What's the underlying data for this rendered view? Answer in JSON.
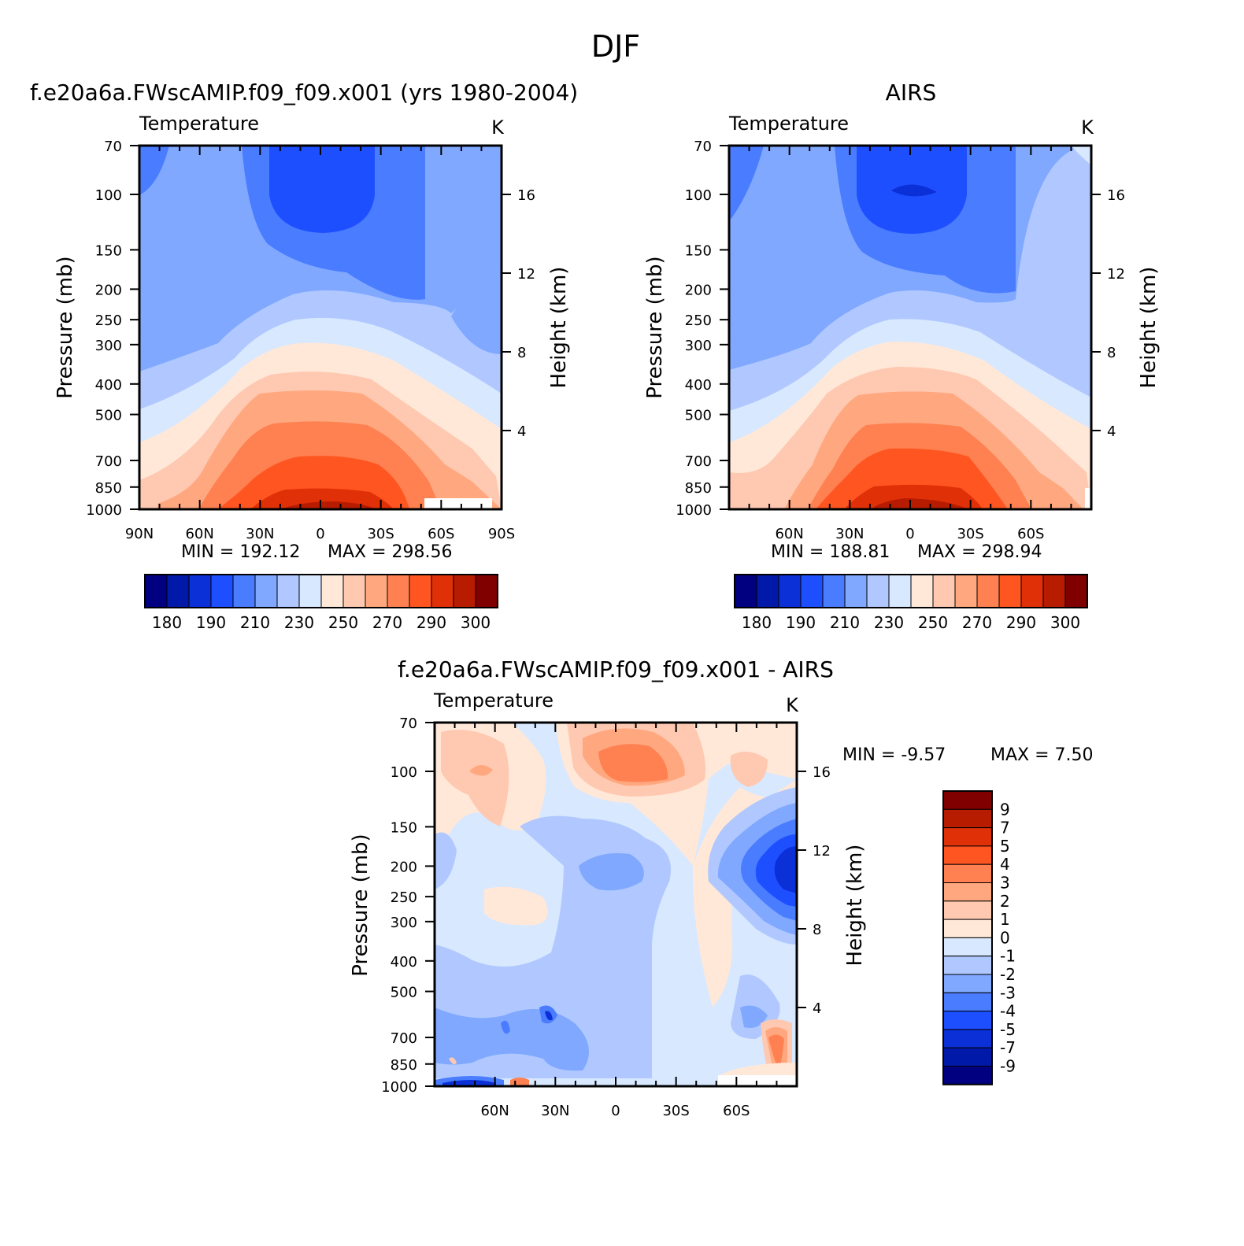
{
  "page_title": "DJF",
  "chart_data": [
    {
      "type": "heatmap",
      "id": "model",
      "title": "f.e20a6a.FWscAMIP.f09_f09.x001 (yrs 1980-2004)",
      "variable": "Temperature",
      "units": "K",
      "ylabel": "Pressure (mb)",
      "y2label": "Height (km)",
      "y_ticks": [
        "70",
        "100",
        "150",
        "200",
        "250",
        "300",
        "400",
        "500",
        "700",
        "850",
        "1000"
      ],
      "y2_ticks": [
        "16",
        "12",
        "8",
        "4"
      ],
      "x_ticks": [
        "90N",
        "60N",
        "30N",
        "0",
        "30S",
        "60S",
        "90S"
      ],
      "min_label": "MIN = 192.12",
      "max_label": "MAX = 298.56",
      "min": 192.12,
      "max": 298.56,
      "colorbar_labels": [
        "180",
        "190",
        "210",
        "230",
        "250",
        "270",
        "290",
        "300"
      ]
    },
    {
      "type": "heatmap",
      "id": "obs",
      "title": "AIRS",
      "variable": "Temperature",
      "units": "K",
      "ylabel": "Pressure (mb)",
      "y2label": "Height (km)",
      "y_ticks": [
        "70",
        "100",
        "150",
        "200",
        "250",
        "300",
        "400",
        "500",
        "700",
        "850",
        "1000"
      ],
      "y2_ticks": [
        "16",
        "12",
        "8",
        "4"
      ],
      "x_ticks": [
        "60N",
        "30N",
        "0",
        "30S",
        "60S"
      ],
      "min_label": "MIN = 188.81",
      "max_label": "MAX = 298.94",
      "min": 188.81,
      "max": 298.94,
      "colorbar_labels": [
        "180",
        "190",
        "210",
        "230",
        "250",
        "270",
        "290",
        "300"
      ]
    },
    {
      "type": "heatmap",
      "id": "diff",
      "title": "f.e20a6a.FWscAMIP.f09_f09.x001 - AIRS",
      "variable": "Temperature",
      "units": "K",
      "ylabel": "Pressure (mb)",
      "y2label": "Height (km)",
      "y_ticks": [
        "70",
        "100",
        "150",
        "200",
        "250",
        "300",
        "400",
        "500",
        "700",
        "850",
        "1000"
      ],
      "y2_ticks": [
        "16",
        "12",
        "8",
        "4"
      ],
      "x_ticks": [
        "60N",
        "30N",
        "0",
        "30S",
        "60S"
      ],
      "min_label": "MIN = -9.57",
      "max_label": "MAX = 7.50",
      "min": -9.57,
      "max": 7.5,
      "colorbar_labels": [
        "9",
        "7",
        "5",
        "4",
        "3",
        "2",
        "1",
        "0",
        "-1",
        "-2",
        "-3",
        "-4",
        "-5",
        "-7",
        "-9"
      ]
    }
  ],
  "palette": [
    "#000080",
    "#0019a8",
    "#0b30d8",
    "#1e4fff",
    "#4a7cff",
    "#80a8ff",
    "#b0c8ff",
    "#d8e8ff",
    "#ffe8d8",
    "#ffc8b0",
    "#ffa880",
    "#ff8050",
    "#ff5520",
    "#e03008",
    "#b81c00",
    "#800000"
  ]
}
